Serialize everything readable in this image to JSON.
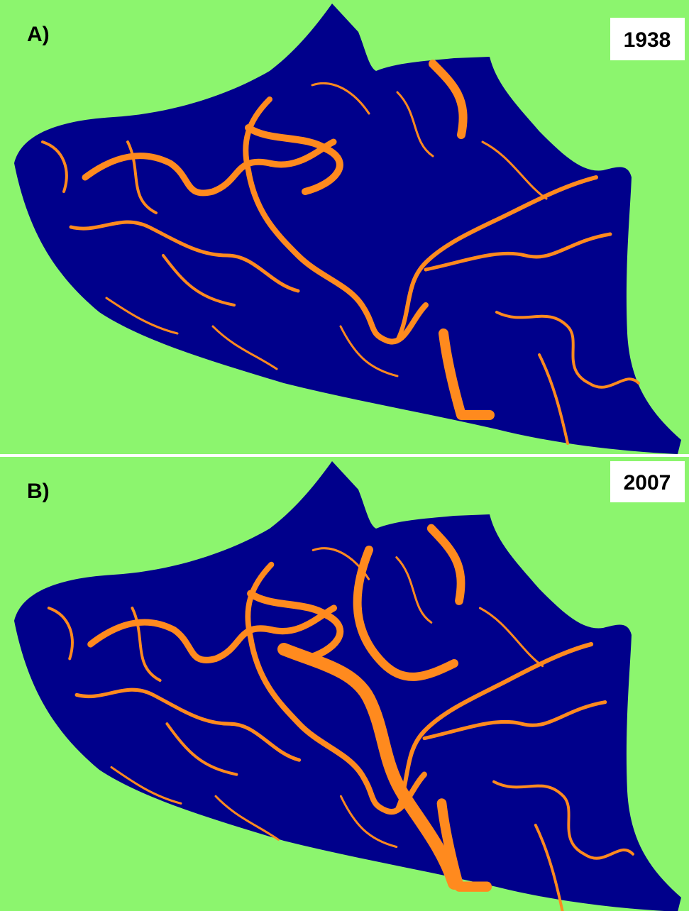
{
  "panels": [
    {
      "label": "A)",
      "year": "1938"
    },
    {
      "label": "B)",
      "year": "2007"
    }
  ]
}
